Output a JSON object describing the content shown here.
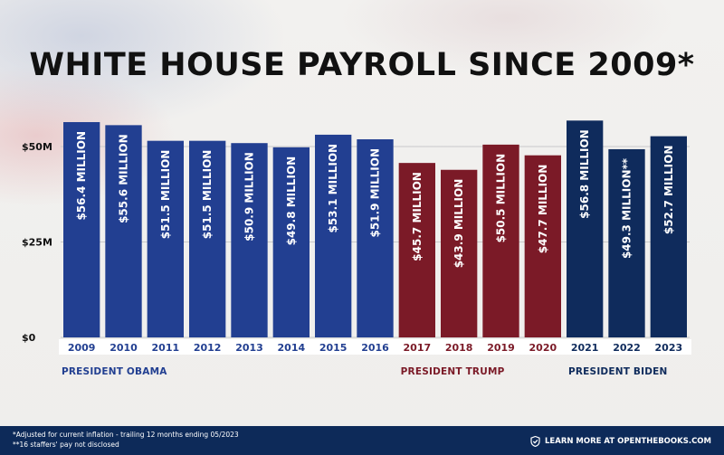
{
  "title": "WHITE HOUSE PAYROLL SINCE 2009*",
  "presidents": {
    "obama": "PRESIDENT OBAMA",
    "trump": "PRESIDENT TRUMP",
    "biden": "PRESIDENT BIDEN"
  },
  "footer": {
    "note1": "*Adjusted for current inflation - trailing 12 months ending 05/2023",
    "note2": "**16 staffers' pay not disclosed",
    "cta": "LEARN MORE AT OPENTHEBOOKS.COM",
    "cta_icon": "check-shield-icon"
  },
  "colors": {
    "obama": "#223f91",
    "trump": "#7b1a27",
    "biden": "#0f2b5c",
    "text_dark": "#111111",
    "footer_bg": "#0d2a59"
  },
  "chart_data": {
    "type": "bar",
    "title": "WHITE HOUSE PAYROLL SINCE 2009*",
    "unit": "million USD",
    "ylim": [
      0,
      50
    ],
    "yticks": [
      0,
      25,
      50
    ],
    "ytick_labels": [
      "$0",
      "$25M",
      "$50M"
    ],
    "grid": true,
    "categories": [
      "2009",
      "2010",
      "2011",
      "2012",
      "2013",
      "2014",
      "2015",
      "2016",
      "2017",
      "2018",
      "2019",
      "2020",
      "2021",
      "2022",
      "2023"
    ],
    "values": [
      56.4,
      55.6,
      51.5,
      51.5,
      50.9,
      49.8,
      53.1,
      51.9,
      45.7,
      43.9,
      50.5,
      47.7,
      56.8,
      49.3,
      52.7
    ],
    "labels": [
      "$56.4 MILLION",
      "$55.6 MILLION",
      "$51.5 MILLION",
      "$51.5 MILLION",
      "$50.9 MILLION",
      "$49.8 MILLION",
      "$53.1 MILLION",
      "$51.9 MILLION",
      "$45.7 MILLION",
      "$43.9 MILLION",
      "$50.5 MILLION",
      "$47.7 MILLION",
      "$56.8 MILLION",
      "$49.3 MILLION**",
      "$52.7 MILLION"
    ],
    "groups": [
      "obama",
      "obama",
      "obama",
      "obama",
      "obama",
      "obama",
      "obama",
      "obama",
      "trump",
      "trump",
      "trump",
      "trump",
      "biden",
      "biden",
      "biden"
    ]
  }
}
